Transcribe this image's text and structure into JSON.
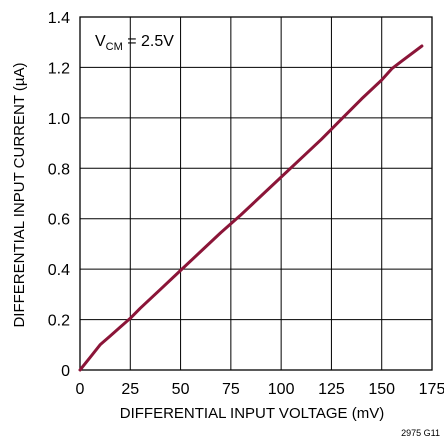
{
  "chart_data": {
    "type": "line",
    "title": "",
    "xlabel": "DIFFERENTIAL INPUT VOLTAGE (mV)",
    "ylabel": "DIFFERENTIAL INPUT CURRENT (µA)",
    "xlim": [
      0,
      175
    ],
    "ylim": [
      0,
      1.4
    ],
    "x_ticks": [
      "0",
      "25",
      "50",
      "75",
      "100",
      "125",
      "150",
      "175"
    ],
    "y_ticks": [
      "0",
      "0.2",
      "0.4",
      "0.6",
      "0.8",
      "1.0",
      "1.2",
      "1.4"
    ],
    "grid": true,
    "annotation": {
      "prefix": "V",
      "subscript": "CM",
      "suffix": " = 2.5V"
    },
    "figure_code": "2975 G11",
    "line_color": "#8b1538",
    "series": [
      {
        "x": [
          0,
          5,
          10,
          15,
          20,
          25,
          30,
          40,
          50,
          60,
          70,
          80,
          90,
          100,
          110,
          120,
          130,
          140,
          150,
          155,
          160,
          170
        ],
        "y": [
          0,
          0.05,
          0.1,
          0.135,
          0.17,
          0.205,
          0.245,
          0.32,
          0.395,
          0.47,
          0.545,
          0.615,
          0.69,
          0.765,
          0.84,
          0.915,
          0.995,
          1.075,
          1.15,
          1.195,
          1.225,
          1.285
        ]
      }
    ]
  }
}
